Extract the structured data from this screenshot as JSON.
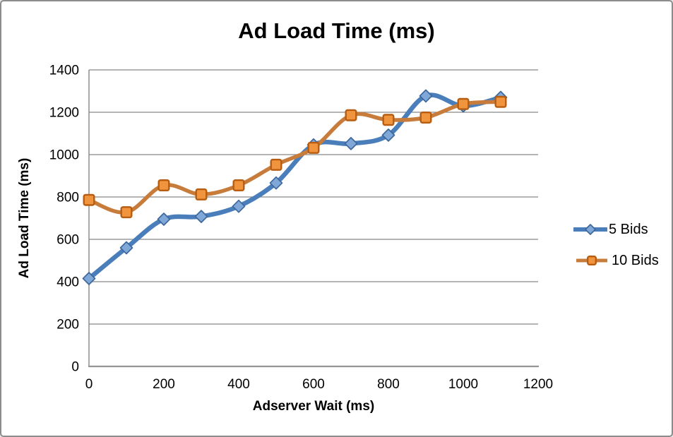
{
  "frame": {
    "background": "#FFFFFF",
    "border_color": "#8C8C8C",
    "grid_color": "#878787",
    "axis_color": "#959595",
    "text_color": "#000000"
  },
  "chart_data": {
    "type": "line",
    "title": "Ad Load Time (ms)",
    "xlabel": "Adserver Wait (ms)",
    "ylabel": "Ad Load Time (ms)",
    "x": [
      0,
      100,
      200,
      300,
      400,
      500,
      600,
      700,
      800,
      900,
      1000,
      1100
    ],
    "series": [
      {
        "name": "5 Bids",
        "marker": "diamond",
        "line_color": "#4A7EBB",
        "marker_fill": "#7FA8D9",
        "marker_stroke": "#3E689C",
        "values": [
          415,
          560,
          695,
          708,
          756,
          866,
          1046,
          1052,
          1092,
          1277,
          1230,
          1270
        ]
      },
      {
        "name": "10 Bids",
        "marker": "square",
        "line_color": "#C87C3B",
        "marker_fill": "#F0943E",
        "marker_stroke": "#B65D11",
        "values": [
          786,
          728,
          855,
          812,
          855,
          952,
          1032,
          1186,
          1164,
          1175,
          1239,
          1249
        ]
      }
    ],
    "xlim": [
      0,
      1200
    ],
    "ylim": [
      0,
      1400
    ],
    "x_ticks": [
      0,
      200,
      400,
      600,
      800,
      1000,
      1200
    ],
    "y_ticks": [
      0,
      200,
      400,
      600,
      800,
      1000,
      1200,
      1400
    ],
    "grid": true,
    "smooth_lines": true,
    "legend_position": "right"
  }
}
